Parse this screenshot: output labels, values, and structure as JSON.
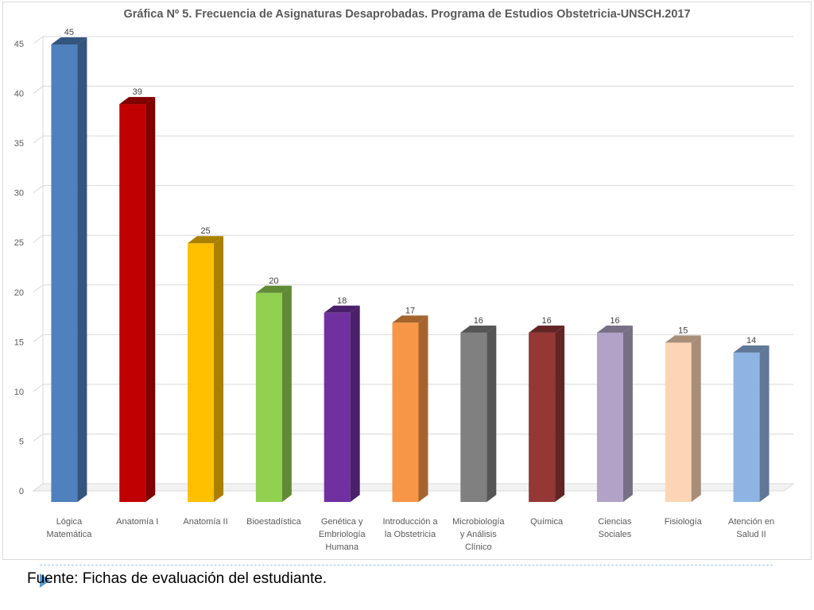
{
  "source_note": "Fuente: Fichas de evaluación del estudiante.",
  "chart_data": {
    "type": "bar",
    "title": "Gráfica Nº 5. Frecuencia de  Asignaturas Desaprobadas. Programa de Estudios Obstetricia-UNSCH.2017",
    "xlabel": "",
    "ylabel": "",
    "ylim": [
      0,
      45
    ],
    "yticks": [
      0,
      5,
      10,
      15,
      20,
      25,
      30,
      35,
      40,
      45
    ],
    "grid": true,
    "categories": [
      [
        "Lógica",
        "Matemática"
      ],
      [
        "Anatomía I"
      ],
      [
        "Anatomía II"
      ],
      [
        "Bioestadística"
      ],
      [
        "Genética y",
        "Embriología",
        "Humana"
      ],
      [
        "Introducción a",
        "la Obstetricia"
      ],
      [
        "Microbiología",
        "y Análisis",
        "Clínico"
      ],
      [
        "Química"
      ],
      [
        "Ciencias",
        "Sociales"
      ],
      [
        "Fisiología"
      ],
      [
        "Atención en",
        "Salud II"
      ]
    ],
    "values": [
      45,
      39,
      25,
      20,
      18,
      17,
      16,
      16,
      16,
      15,
      14
    ],
    "colors": [
      "#4f81bd",
      "#c00000",
      "#ffc000",
      "#92d050",
      "#7030a0",
      "#f79646",
      "#808080",
      "#953735",
      "#b3a2c7",
      "#fcd5b5",
      "#8eb4e3"
    ],
    "side_colors": [
      "#34557e",
      "#800000",
      "#aa8000",
      "#618a35",
      "#4a206b",
      "#a5642f",
      "#555555",
      "#632524",
      "#777085",
      "#a88e79",
      "#5f7897"
    ]
  }
}
